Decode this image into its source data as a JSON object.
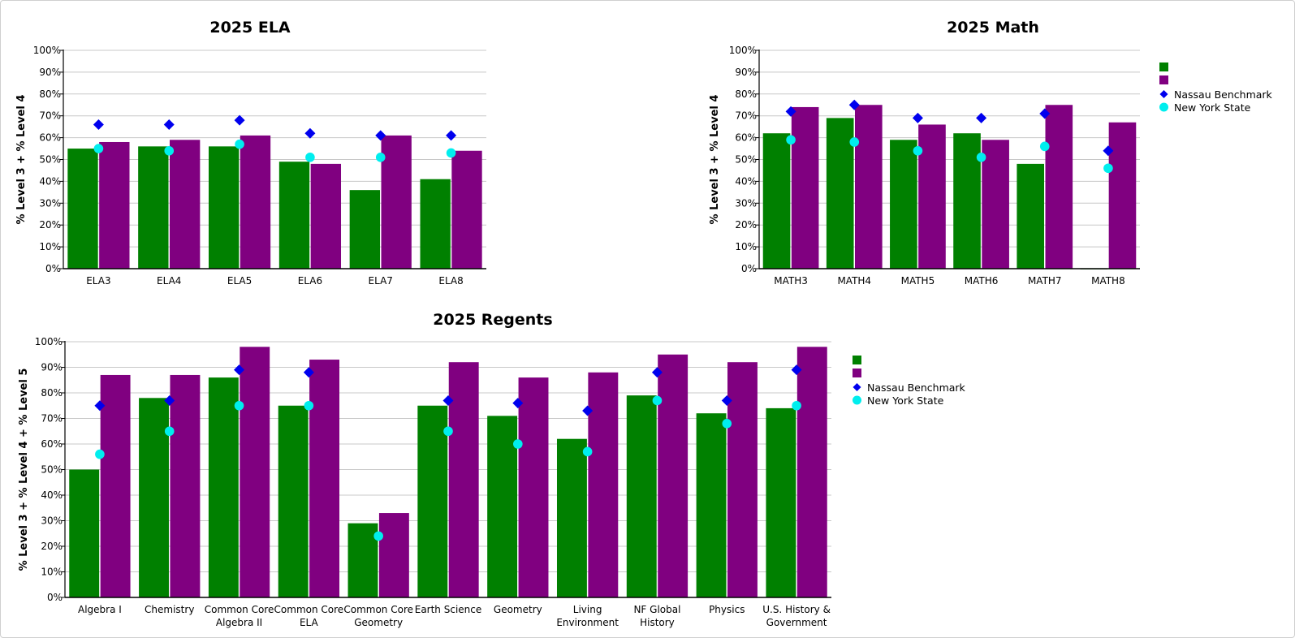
{
  "colors": {
    "series1": "#008000",
    "series2": "#800080",
    "benchmark": "#0000ee",
    "state": "#00eeee",
    "grid": "#c8c8c8",
    "axis": "#000000"
  },
  "legend": {
    "series1": "",
    "series2": "",
    "benchmark": "Nassau Benchmark",
    "state": "New York State"
  },
  "chart_data": [
    {
      "id": "ela",
      "type": "bar",
      "title": "2025 ELA",
      "ylabel": "% Level 3 + % Level 4",
      "ylim": [
        0,
        100
      ],
      "yticks": [
        "0%",
        "10%",
        "20%",
        "30%",
        "40%",
        "50%",
        "60%",
        "70%",
        "80%",
        "90%",
        "100%"
      ],
      "categories": [
        "ELA3",
        "ELA4",
        "ELA5",
        "ELA6",
        "ELA7",
        "ELA8"
      ],
      "series": [
        {
          "values": [
            55,
            56,
            56,
            49,
            36,
            41
          ]
        },
        {
          "values": [
            58,
            59,
            61,
            48,
            61,
            54
          ]
        }
      ],
      "markers": [
        {
          "name": "Nassau Benchmark",
          "values": [
            66,
            66,
            68,
            62,
            61,
            61
          ]
        },
        {
          "name": "New York State",
          "values": [
            55,
            54,
            57,
            51,
            51,
            53
          ]
        }
      ],
      "legend": false,
      "grid": true
    },
    {
      "id": "math",
      "type": "bar",
      "title": "2025 Math",
      "ylabel": "% Level 3 + % Level 4",
      "ylim": [
        0,
        100
      ],
      "yticks": [
        "0%",
        "10%",
        "20%",
        "30%",
        "40%",
        "50%",
        "60%",
        "70%",
        "80%",
        "90%",
        "100%"
      ],
      "categories": [
        "MATH3",
        "MATH4",
        "MATH5",
        "MATH6",
        "MATH7",
        "MATH8"
      ],
      "series": [
        {
          "values": [
            62,
            69,
            59,
            62,
            48,
            0
          ]
        },
        {
          "values": [
            74,
            75,
            66,
            59,
            75,
            67
          ]
        }
      ],
      "markers": [
        {
          "name": "Nassau Benchmark",
          "values": [
            72,
            75,
            69,
            69,
            71,
            54
          ]
        },
        {
          "name": "New York State",
          "values": [
            59,
            58,
            54,
            51,
            56,
            46
          ]
        }
      ],
      "legend": "right",
      "grid": true
    },
    {
      "id": "regents",
      "type": "bar",
      "title": "2025 Regents",
      "ylabel": "% Level 3 + % Level 4 + % Level 5",
      "ylim": [
        0,
        100
      ],
      "yticks": [
        "0%",
        "10%",
        "20%",
        "30%",
        "40%",
        "50%",
        "60%",
        "70%",
        "80%",
        "90%",
        "100%"
      ],
      "categories": [
        [
          "Algebra I"
        ],
        [
          "Chemistry"
        ],
        [
          "Common Core",
          "Algebra II"
        ],
        [
          "Common Core",
          "ELA"
        ],
        [
          "Common Core",
          "Geometry"
        ],
        [
          "Earth Science"
        ],
        [
          "Geometry"
        ],
        [
          "Living",
          "Environment"
        ],
        [
          "NF Global",
          "History"
        ],
        [
          "Physics"
        ],
        [
          "U.S. History &",
          "Government"
        ]
      ],
      "series": [
        {
          "values": [
            50,
            78,
            86,
            75,
            29,
            75,
            71,
            62,
            79,
            72,
            74
          ]
        },
        {
          "values": [
            87,
            87,
            98,
            93,
            33,
            92,
            86,
            88,
            95,
            92,
            98
          ]
        }
      ],
      "markers": [
        {
          "name": "Nassau Benchmark",
          "values": [
            75,
            77,
            89,
            88,
            null,
            77,
            76,
            73,
            88,
            77,
            89
          ]
        },
        {
          "name": "New York State",
          "values": [
            56,
            65,
            75,
            75,
            24,
            65,
            60,
            57,
            77,
            68,
            75
          ]
        }
      ],
      "legend": "right",
      "grid": true
    }
  ]
}
